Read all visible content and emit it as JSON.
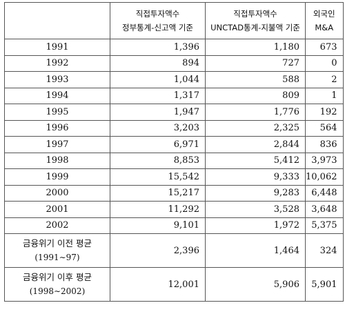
{
  "header": {
    "col1_line1": "직접투자액수",
    "col1_line2": "정부통계-신고액 기준",
    "col2_line1": "직접투자액수",
    "col2_line2": "UNCTAD통계-지불액 기준",
    "col3_line1": "외국인",
    "col3_line2": "M&A"
  },
  "rows": [
    {
      "year": "1991",
      "gov": "1,396",
      "unctad": "1,180",
      "mna": "673"
    },
    {
      "year": "1992",
      "gov": "894",
      "unctad": "727",
      "mna": "0"
    },
    {
      "year": "1993",
      "gov": "1,044",
      "unctad": "588",
      "mna": "2"
    },
    {
      "year": "1994",
      "gov": "1,317",
      "unctad": "809",
      "mna": "1"
    },
    {
      "year": "1995",
      "gov": "1,947",
      "unctad": "1,776",
      "mna": "192"
    },
    {
      "year": "1996",
      "gov": "3,203",
      "unctad": "2,325",
      "mna": "564"
    },
    {
      "year": "1997",
      "gov": "6,971",
      "unctad": "2,844",
      "mna": "836"
    },
    {
      "year": "1998",
      "gov": "8,853",
      "unctad": "5,412",
      "mna": "3,973"
    },
    {
      "year": "1999",
      "gov": "15,542",
      "unctad": "9,333",
      "mna": "10,062"
    },
    {
      "year": "2000",
      "gov": "15,217",
      "unctad": "9,283",
      "mna": "6,448"
    },
    {
      "year": "2001",
      "gov": "11,292",
      "unctad": "3,528",
      "mna": "3,648"
    },
    {
      "year": "2002",
      "gov": "9,101",
      "unctad": "1,972",
      "mna": "5,375"
    }
  ],
  "averages": [
    {
      "label": "금융위기 이전 평균",
      "period": "(1991∼97)",
      "gov": "2,396",
      "unctad": "1,464",
      "mna": "324"
    },
    {
      "label": "금융위기 이후 평균",
      "period": "(1998∼2002)",
      "gov": "12,001",
      "unctad": "5,906",
      "mna": "5,901"
    }
  ]
}
